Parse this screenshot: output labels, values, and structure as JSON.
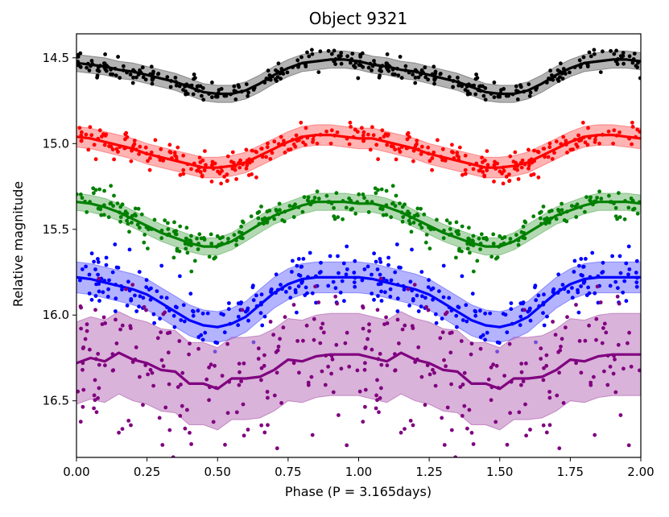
{
  "chart_data": {
    "type": "scatter",
    "title": "Object 9321",
    "xlabel": "Phase (P = 3.165days)",
    "ylabel": "Relative magnitude",
    "xlim": [
      0.0,
      2.0
    ],
    "ylim": [
      16.83,
      14.36
    ],
    "y_inverted": true,
    "grid": false,
    "x_ticks": [
      "0.00",
      "0.25",
      "0.50",
      "0.75",
      "1.00",
      "1.25",
      "1.50",
      "1.75",
      "2.00"
    ],
    "x_tick_values": [
      0,
      0.25,
      0.5,
      0.75,
      1.0,
      1.25,
      1.5,
      1.75,
      2.0
    ],
    "y_ticks": [
      "14.5",
      "15.0",
      "15.5",
      "16.0",
      "16.5"
    ],
    "y_tick_values": [
      14.5,
      15.0,
      15.5,
      16.0,
      16.5
    ],
    "series": [
      {
        "color": "#000000",
        "band_color": "#808080",
        "phase": [
          0.0,
          0.05,
          0.1,
          0.15,
          0.2,
          0.25,
          0.3,
          0.35,
          0.4,
          0.45,
          0.5,
          0.55,
          0.6,
          0.65,
          0.7,
          0.75,
          0.8,
          0.85,
          0.9,
          0.95,
          1.0
        ],
        "mag": [
          14.53,
          14.54,
          14.55,
          14.57,
          14.58,
          14.6,
          14.62,
          14.64,
          14.67,
          14.7,
          14.71,
          14.71,
          14.69,
          14.65,
          14.6,
          14.56,
          14.53,
          14.52,
          14.51,
          14.51,
          14.52
        ],
        "band_halfwidth": 0.05,
        "scatter": 0.03
      },
      {
        "color": "#ff0000",
        "band_color": "#ff8080",
        "phase": [
          0.0,
          0.05,
          0.1,
          0.15,
          0.2,
          0.25,
          0.3,
          0.35,
          0.4,
          0.45,
          0.5,
          0.55,
          0.6,
          0.65,
          0.7,
          0.75,
          0.8,
          0.85,
          0.9,
          0.95,
          1.0
        ],
        "mag": [
          14.96,
          14.97,
          14.99,
          15.01,
          15.03,
          15.06,
          15.08,
          15.1,
          15.12,
          15.14,
          15.14,
          15.13,
          15.11,
          15.07,
          15.03,
          14.99,
          14.96,
          14.95,
          14.95,
          14.96,
          14.97
        ],
        "band_halfwidth": 0.06,
        "scatter": 0.04
      },
      {
        "color": "#008000",
        "band_color": "#80c080",
        "phase": [
          0.0,
          0.05,
          0.1,
          0.15,
          0.2,
          0.25,
          0.3,
          0.35,
          0.4,
          0.45,
          0.5,
          0.55,
          0.6,
          0.65,
          0.7,
          0.75,
          0.8,
          0.85,
          0.9,
          0.95,
          1.0
        ],
        "mag": [
          15.34,
          15.35,
          15.37,
          15.4,
          15.44,
          15.48,
          15.52,
          15.55,
          15.58,
          15.6,
          15.6,
          15.57,
          15.52,
          15.47,
          15.42,
          15.39,
          15.36,
          15.34,
          15.34,
          15.34,
          15.35
        ],
        "band_halfwidth": 0.05,
        "scatter": 0.05
      },
      {
        "color": "#0000ff",
        "band_color": "#8080ff",
        "phase": [
          0.0,
          0.05,
          0.1,
          0.15,
          0.2,
          0.25,
          0.3,
          0.35,
          0.4,
          0.45,
          0.5,
          0.55,
          0.6,
          0.65,
          0.7,
          0.75,
          0.8,
          0.85,
          0.9,
          0.95,
          1.0
        ],
        "mag": [
          15.78,
          15.79,
          15.81,
          15.83,
          15.85,
          15.88,
          15.93,
          15.98,
          16.03,
          16.06,
          16.07,
          16.05,
          16.01,
          15.94,
          15.87,
          15.82,
          15.79,
          15.78,
          15.78,
          15.78,
          15.78
        ],
        "band_halfwidth": 0.09,
        "scatter": 0.09
      },
      {
        "color": "#800080",
        "band_color": "#c080c0",
        "phase": [
          0.0,
          0.05,
          0.1,
          0.15,
          0.2,
          0.25,
          0.3,
          0.35,
          0.4,
          0.45,
          0.5,
          0.55,
          0.6,
          0.65,
          0.7,
          0.75,
          0.8,
          0.85,
          0.9,
          0.95,
          1.0
        ],
        "mag": [
          16.28,
          16.25,
          16.27,
          16.22,
          16.26,
          16.28,
          16.32,
          16.33,
          16.4,
          16.4,
          16.43,
          16.37,
          16.37,
          16.36,
          16.32,
          16.26,
          16.27,
          16.24,
          16.23,
          16.23,
          16.23
        ],
        "band_halfwidth": 0.24,
        "scatter": 0.2
      }
    ]
  }
}
